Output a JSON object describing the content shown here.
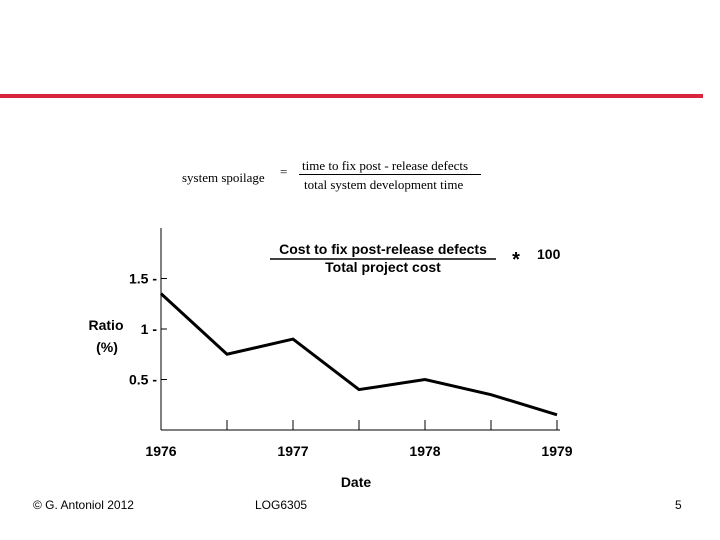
{
  "colors": {
    "accent_bar": "#d7263d",
    "ink": "#000000"
  },
  "formula": {
    "lhs": "system spoilage",
    "equals": "=",
    "numerator": "time to fix post - release defects",
    "denominator": "total system development time"
  },
  "chart_data": {
    "type": "line",
    "title_numerator": "Cost to fix post-release defects",
    "title_denominator": "Total project cost",
    "multiplier": "*",
    "multiplier_value": "100",
    "xlabel": "Date",
    "ylabel_line1": "Ratio",
    "ylabel_line2": "(%)",
    "x_ticklabels": [
      "1976",
      "1977",
      "1978",
      "1979"
    ],
    "y_ticklabels": [
      "1.5",
      "1",
      "0.5"
    ],
    "xlim": [
      1976,
      1979
    ],
    "ylim": [
      0,
      2
    ],
    "series": [
      {
        "name": "Ratio",
        "x": [
          1976,
          1976.5,
          1977,
          1977.5,
          1978,
          1978.5,
          1979
        ],
        "y": [
          1.35,
          0.75,
          0.9,
          0.4,
          0.5,
          0.35,
          0.15
        ]
      }
    ]
  },
  "footer": {
    "copyright": "© G. Antoniol 2012",
    "course": "LOG6305",
    "page_number": "5"
  }
}
